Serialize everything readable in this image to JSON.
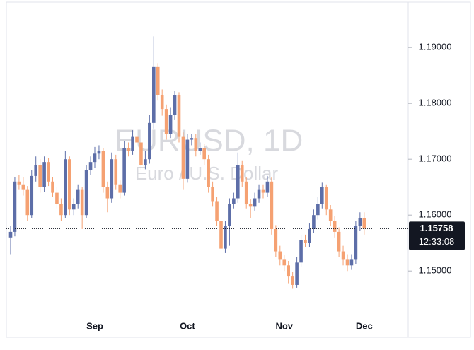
{
  "chart_data": {
    "type": "candlestick",
    "title": "EURUSD, 1D",
    "subtitle": "Euro / U.S. Dollar",
    "categories": [
      null,
      null,
      null,
      null,
      null,
      null,
      null,
      null,
      null,
      null,
      null,
      null,
      null,
      null,
      null,
      null,
      null,
      null,
      null,
      null,
      "Sep",
      null,
      null,
      null,
      null,
      null,
      null,
      null,
      null,
      null,
      null,
      null,
      null,
      null,
      null,
      null,
      null,
      null,
      null,
      null,
      null,
      null,
      "Oct",
      null,
      null,
      null,
      null,
      null,
      null,
      null,
      null,
      null,
      null,
      null,
      null,
      null,
      null,
      null,
      null,
      null,
      null,
      null,
      null,
      null,
      null,
      "Nov",
      null,
      null,
      null,
      null,
      null,
      null,
      null,
      null,
      null,
      null,
      null,
      null,
      null,
      null,
      null,
      null,
      null,
      null,
      "Dec"
    ],
    "open": [
      1.156,
      1.157,
      1.166,
      1.1655,
      1.1645,
      1.16,
      1.167,
      1.169,
      1.165,
      1.1695,
      1.166,
      1.164,
      1.162,
      1.16,
      1.17,
      1.161,
      1.162,
      1.1645,
      1.16,
      1.168,
      1.1695,
      1.171,
      1.1715,
      1.165,
      1.163,
      1.17,
      1.1655,
      1.164,
      1.172,
      1.1715,
      1.174,
      1.173,
      1.169,
      1.17,
      1.1765,
      1.1865,
      1.1815,
      1.179,
      1.1745,
      1.178,
      1.1815,
      1.174,
      1.1665,
      1.1735,
      1.1738,
      1.1715,
      1.172,
      1.17,
      1.165,
      1.1625,
      1.159,
      1.154,
      1.158,
      1.162,
      1.163,
      1.169,
      1.166,
      1.162,
      1.1615,
      1.163,
      1.1645,
      1.164,
      1.166,
      1.1575,
      1.1535,
      1.152,
      1.151,
      1.149,
      1.1475,
      1.1515,
      1.1555,
      1.155,
      1.1575,
      1.16,
      1.162,
      1.165,
      1.161,
      1.159,
      1.157,
      1.1535,
      1.152,
      1.151,
      1.152,
      1.158,
      1.1595
    ],
    "high": [
      1.158,
      1.1668,
      1.1672,
      1.1668,
      1.1652,
      1.168,
      1.1705,
      1.17,
      1.1705,
      1.1702,
      1.1668,
      1.165,
      1.163,
      1.1715,
      1.1705,
      1.163,
      1.1655,
      1.165,
      1.169,
      1.1705,
      1.1722,
      1.1725,
      1.172,
      1.166,
      1.1712,
      1.1708,
      1.1662,
      1.1732,
      1.173,
      1.1752,
      1.1748,
      1.1738,
      1.1715,
      1.178,
      1.192,
      1.1872,
      1.1825,
      1.1798,
      1.1792,
      1.1822,
      1.182,
      1.1748,
      1.1745,
      1.1745,
      1.1745,
      1.173,
      1.1728,
      1.1708,
      1.166,
      1.1632,
      1.1598,
      1.159,
      1.163,
      1.164,
      1.1712,
      1.1698,
      1.1668,
      1.1628,
      1.164,
      1.1655,
      1.1655,
      1.167,
      1.1668,
      1.1582,
      1.1545,
      1.1528,
      1.1518,
      1.1498,
      1.1525,
      1.1565,
      1.1565,
      1.1585,
      1.161,
      1.1632,
      1.1658,
      1.1655,
      1.1618,
      1.1598,
      1.1578,
      1.1545,
      1.153,
      1.153,
      1.159,
      1.1605,
      1.1605
    ],
    "low": [
      1.153,
      1.1562,
      1.1645,
      1.1635,
      1.159,
      1.1595,
      1.166,
      1.164,
      1.1642,
      1.1652,
      1.1632,
      1.1612,
      1.159,
      1.1595,
      1.16,
      1.16,
      1.1612,
      1.1575,
      1.1595,
      1.1672,
      1.1685,
      1.17,
      1.164,
      1.1605,
      1.1622,
      1.1645,
      1.163,
      1.1635,
      1.1705,
      1.1708,
      1.172,
      1.168,
      1.1682,
      1.1692,
      1.1755,
      1.1805,
      1.1778,
      1.1735,
      1.1738,
      1.177,
      1.173,
      1.1645,
      1.1658,
      1.1725,
      1.1705,
      1.1708,
      1.169,
      1.164,
      1.1615,
      1.158,
      1.153,
      1.1532,
      1.1545,
      1.1612,
      1.1622,
      1.165,
      1.1612,
      1.1595,
      1.1608,
      1.1622,
      1.163,
      1.1632,
      1.1565,
      1.1525,
      1.151,
      1.15,
      1.1478,
      1.1468,
      1.147,
      1.1508,
      1.1542,
      1.1542,
      1.1568,
      1.1592,
      1.1612,
      1.16,
      1.158,
      1.156,
      1.1525,
      1.151,
      1.15,
      1.1502,
      1.1512,
      1.1572,
      1.1565
    ],
    "close": [
      1.157,
      1.166,
      1.1655,
      1.1645,
      1.16,
      1.167,
      1.169,
      1.165,
      1.1695,
      1.166,
      1.164,
      1.162,
      1.16,
      1.17,
      1.161,
      1.162,
      1.1645,
      1.16,
      1.168,
      1.1695,
      1.171,
      1.1715,
      1.165,
      1.163,
      1.17,
      1.1655,
      1.164,
      1.172,
      1.1715,
      1.174,
      1.173,
      1.169,
      1.17,
      1.1765,
      1.1865,
      1.1815,
      1.179,
      1.1745,
      1.178,
      1.1815,
      1.174,
      1.1665,
      1.1735,
      1.1738,
      1.1715,
      1.172,
      1.17,
      1.165,
      1.1625,
      1.159,
      1.154,
      1.158,
      1.162,
      1.163,
      1.169,
      1.166,
      1.162,
      1.1615,
      1.163,
      1.1645,
      1.164,
      1.166,
      1.1575,
      1.1535,
      1.152,
      1.151,
      1.149,
      1.1475,
      1.1515,
      1.1555,
      1.155,
      1.1575,
      1.16,
      1.162,
      1.165,
      1.161,
      1.159,
      1.157,
      1.1535,
      1.152,
      1.151,
      1.152,
      1.158,
      1.1595,
      1.15758
    ],
    "up_color": "#5d6ea8",
    "down_color": "#f5a172",
    "ylim": [
      1.138,
      1.198
    ],
    "yticks": [
      {
        "value": 1.15,
        "label": "1.15000"
      },
      {
        "value": 1.16,
        "label": "1.16000"
      },
      {
        "value": 1.17,
        "label": "1.17000"
      },
      {
        "value": 1.18,
        "label": "1.18000"
      },
      {
        "value": 1.19,
        "label": "1.19000"
      }
    ],
    "last_price": 1.15758,
    "countdown": "12:33:08"
  }
}
